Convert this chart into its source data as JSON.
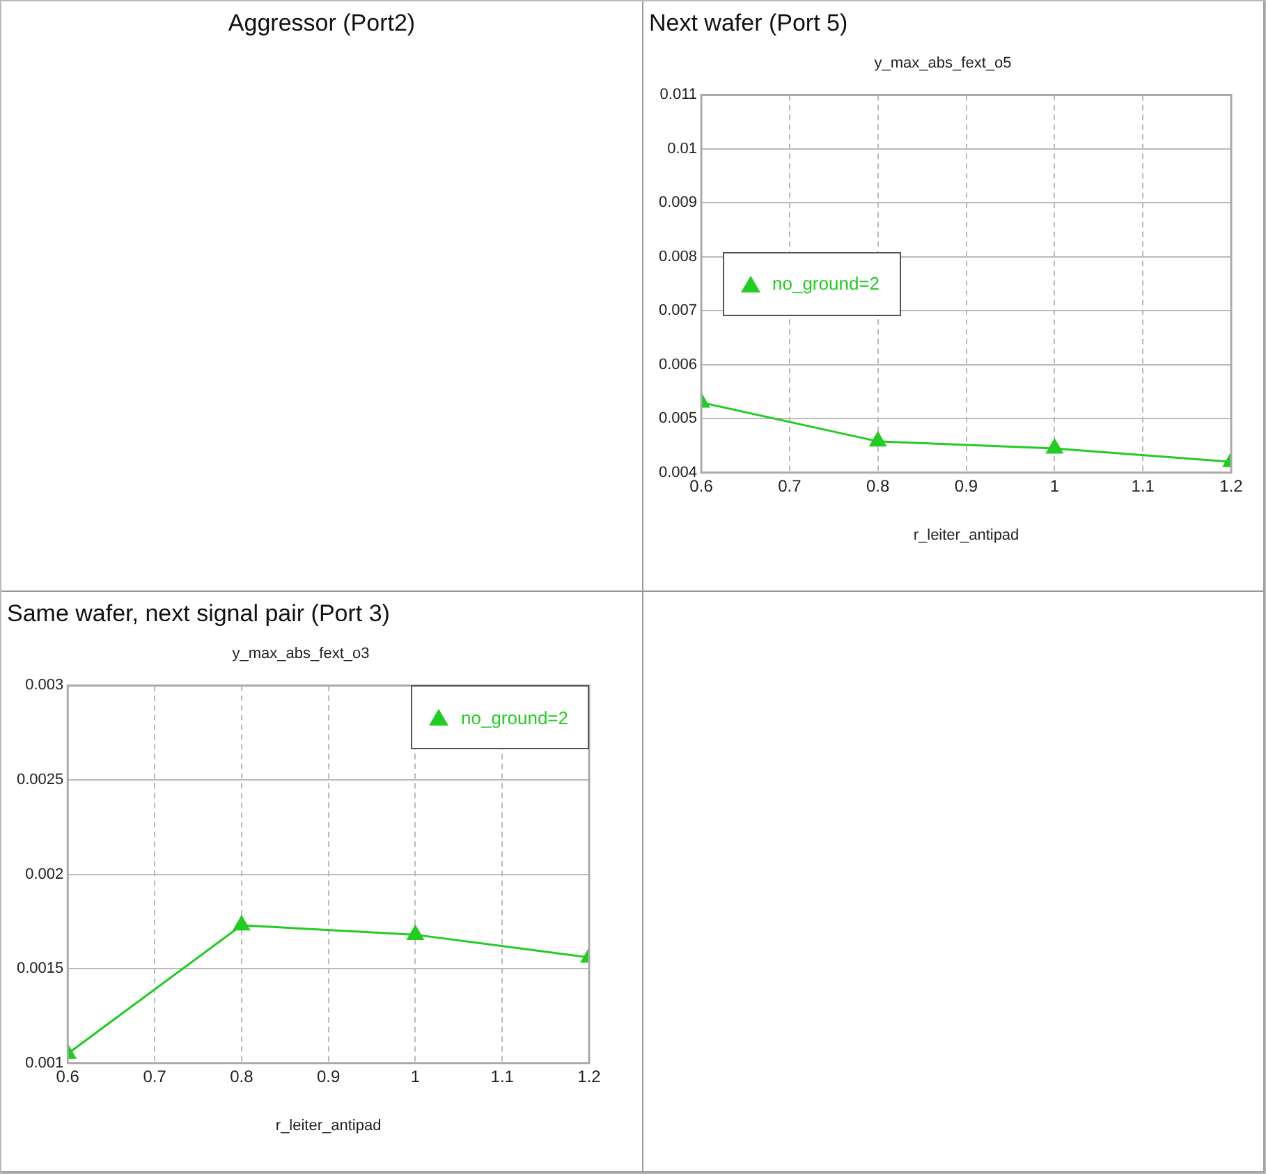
{
  "chart_data": [
    {
      "type": "other",
      "title": "Aggressor (Port2)"
    },
    {
      "type": "line",
      "title": "Next wafer (Port 5)",
      "subtitle": "y_max_abs_fext_o5",
      "xlabel": "r_leiter_antipad",
      "x": [
        0.6,
        0.8,
        1,
        1.2
      ],
      "series": [
        {
          "name": "no_ground=2",
          "color": "#22cc22",
          "values": [
            0.0053,
            0.00458,
            0.00445,
            0.0042
          ]
        }
      ],
      "xlim": [
        0.6,
        1.2
      ],
      "xticks": [
        0.6,
        0.7,
        0.8,
        0.9,
        1,
        1.1,
        1.2
      ],
      "ylim": [
        0.004,
        0.011
      ],
      "yticks": [
        0.004,
        0.005,
        0.006,
        0.007,
        0.008,
        0.009,
        0.01,
        0.011
      ],
      "grid": true,
      "legend": "left",
      "marker": "triangle",
      "line_style": "solid"
    },
    {
      "type": "line",
      "title": "Same wafer, next signal pair (Port 3)",
      "subtitle": "y_max_abs_fext_o3",
      "xlabel": "r_leiter_antipad",
      "x": [
        0.6,
        0.8,
        1,
        1.2
      ],
      "series": [
        {
          "name": "no_ground=2",
          "color": "#22cc22",
          "values": [
            0.00105,
            0.00173,
            0.00168,
            0.00156
          ]
        }
      ],
      "xlim": [
        0.6,
        1.2
      ],
      "xticks": [
        0.6,
        0.7,
        0.8,
        0.9,
        1,
        1.1,
        1.2
      ],
      "ylim": [
        0.001,
        0.003
      ],
      "yticks": [
        0.001,
        0.0015,
        0.002,
        0.0025,
        0.003
      ],
      "grid": true,
      "legend": "top right",
      "marker": "triangle",
      "line_style": "solid"
    }
  ]
}
